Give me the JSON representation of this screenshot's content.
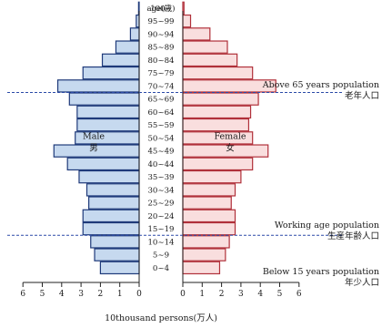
{
  "chart_data": {
    "type": "bar",
    "subtype": "population-pyramid",
    "age_axis_label": "age(歳)",
    "categories": [
      "0~4",
      "5~9",
      "10~14",
      "15~19",
      "20~24",
      "25~29",
      "30~34",
      "35~39",
      "40~44",
      "45~49",
      "50~54",
      "55~59",
      "60~64",
      "65~69",
      "70~74",
      "75~79",
      "80~84",
      "85~89",
      "90~94",
      "95~99",
      "100~"
    ],
    "series": [
      {
        "name": "Male 男",
        "name_lines": [
          "Male",
          "男"
        ],
        "side": "left",
        "values": [
          2.0,
          2.3,
          2.5,
          2.9,
          2.9,
          2.6,
          2.7,
          3.1,
          3.7,
          4.4,
          3.3,
          3.2,
          3.2,
          3.6,
          4.2,
          2.9,
          1.9,
          1.2,
          0.45,
          0.15,
          0.03
        ]
      },
      {
        "name": "Female 女",
        "name_lines": [
          "Female",
          "女"
        ],
        "side": "right",
        "values": [
          1.9,
          2.2,
          2.4,
          2.7,
          2.7,
          2.5,
          2.7,
          3.0,
          3.6,
          4.4,
          3.6,
          3.4,
          3.5,
          3.9,
          4.8,
          3.6,
          2.8,
          2.3,
          1.4,
          0.4,
          0.06
        ]
      }
    ],
    "xlim": [
      0,
      6
    ],
    "x_ticks": [
      "6",
      "5",
      "4",
      "3",
      "2",
      "1",
      "0",
      "0",
      "1",
      "2",
      "3",
      "4",
      "5",
      "6"
    ],
    "xlabel": "10thousand persons(万人)",
    "colors": {
      "male_fill": "#c6d9ef",
      "male_stroke": "#1f3a7a",
      "female_fill": "#f9dede",
      "female_stroke": "#b0303a",
      "divider": "#2b4aa8"
    },
    "dividers_between": [
      "10~14|15~19",
      "65~69|70~74"
    ],
    "annotations": [
      {
        "lines": [
          "Above 65 years population",
          "老年人口"
        ],
        "group": "65+"
      },
      {
        "lines": [
          "Working age population",
          "生産年齢人口"
        ],
        "group": "15-64"
      },
      {
        "lines": [
          "Below 15 years population",
          "年少人口"
        ],
        "group": "0-14"
      }
    ]
  }
}
